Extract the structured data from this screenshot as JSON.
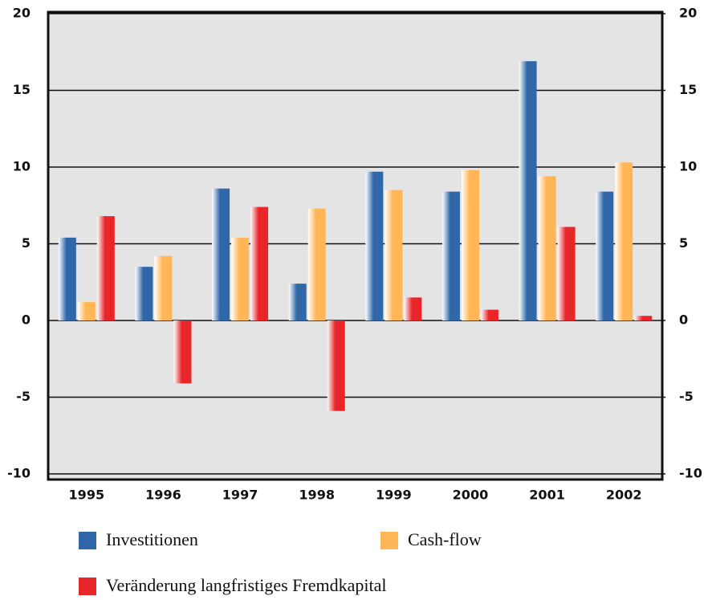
{
  "chart_data": {
    "type": "bar",
    "categories": [
      "1995",
      "1996",
      "1997",
      "1998",
      "1999",
      "2000",
      "2001",
      "2002"
    ],
    "series": [
      {
        "name": "Investitionen",
        "color": "#2f67a8",
        "values": [
          5.4,
          3.5,
          8.6,
          2.4,
          9.7,
          8.4,
          16.9,
          8.4
        ]
      },
      {
        "name": "Cash-flow",
        "color": "#ffb657",
        "values": [
          1.2,
          4.2,
          5.4,
          7.3,
          8.5,
          9.8,
          9.4,
          10.3
        ]
      },
      {
        "name": "Veränderung langfristiges Fremdkapital",
        "color": "#e8262a",
        "values": [
          6.8,
          -4.1,
          7.4,
          -5.9,
          1.5,
          0.7,
          6.1,
          0.3
        ]
      }
    ],
    "ylim": [
      -10,
      20
    ],
    "yticks": [
      -10,
      -5,
      0,
      5,
      10,
      15,
      20
    ],
    "y2lim": [
      -10,
      20
    ],
    "y2ticks": [
      -10,
      -5,
      0,
      5,
      10,
      15,
      20
    ],
    "grid": true
  }
}
